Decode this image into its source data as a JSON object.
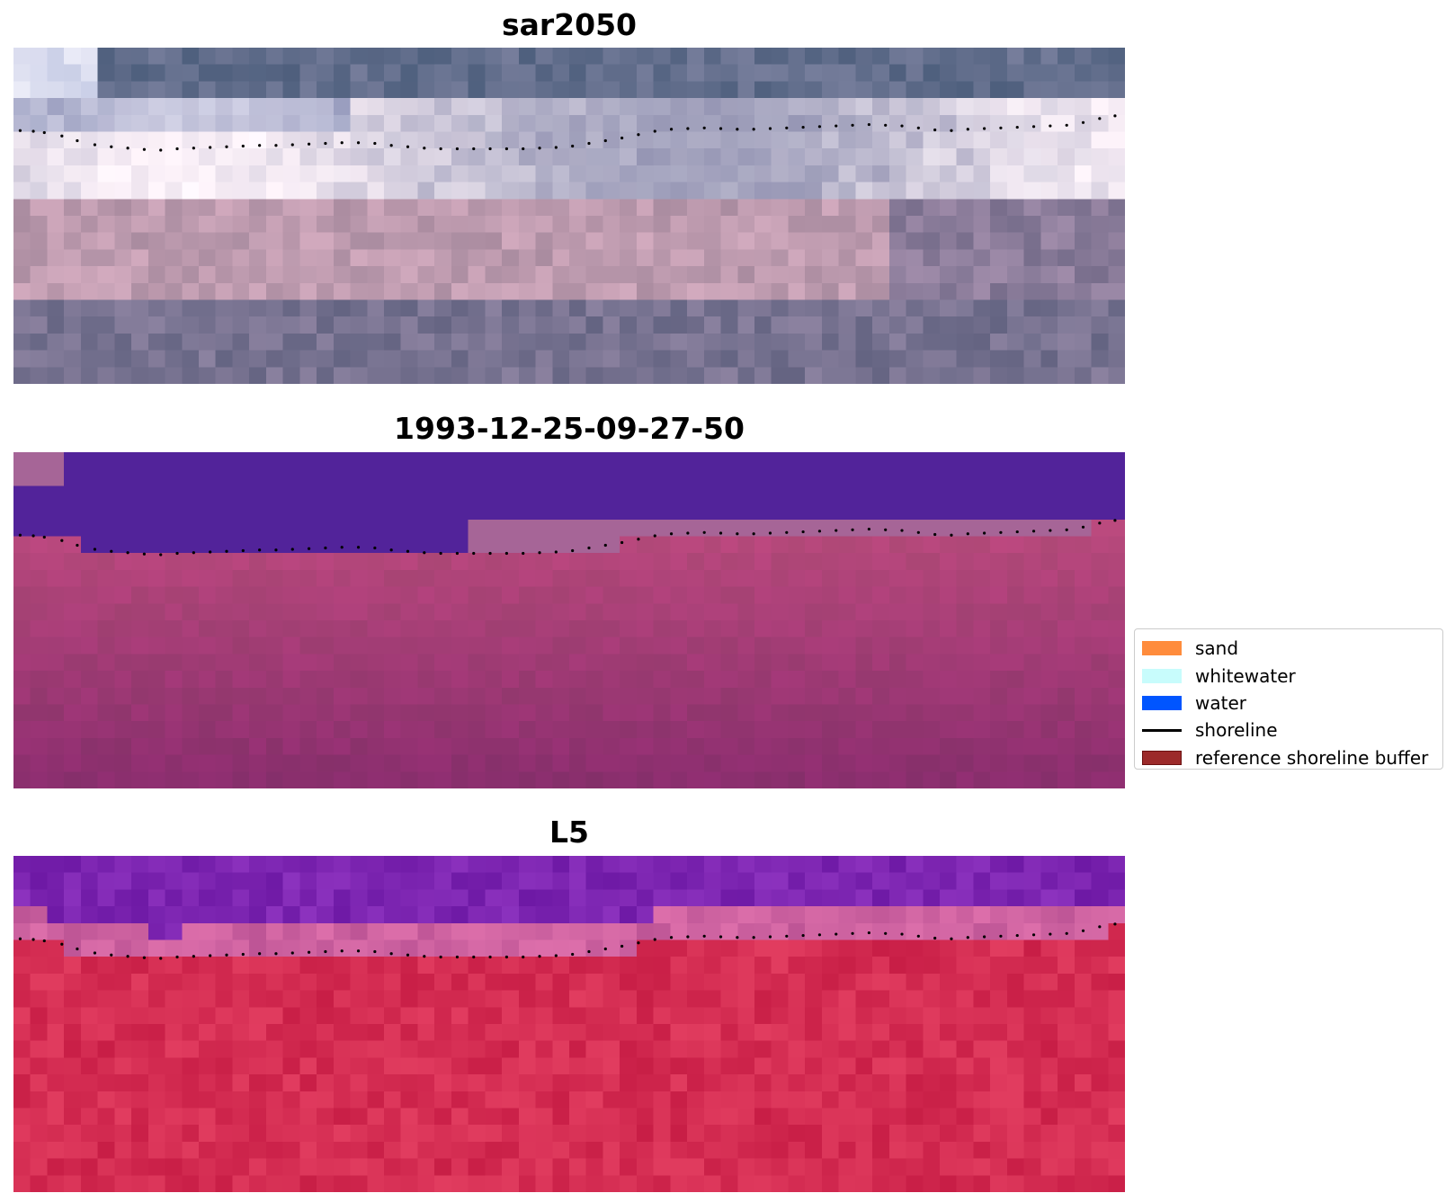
{
  "panels": [
    {
      "title": "sar2050",
      "kind": "rgb"
    },
    {
      "title": "1993-12-25-09-27-50",
      "kind": "classification"
    },
    {
      "title": "L5",
      "kind": "index"
    }
  ],
  "legend": {
    "items": [
      {
        "label": "sand",
        "type": "patch",
        "color": "#ff8c3c"
      },
      {
        "label": "whitewater",
        "type": "patch",
        "color": "#c8fcfc"
      },
      {
        "label": "water",
        "type": "patch",
        "color": "#0055ff"
      },
      {
        "label": "shoreline",
        "type": "line",
        "color": "#000000"
      },
      {
        "label": "reference shoreline buffer",
        "type": "patch",
        "color": "#9c2a2a"
      }
    ]
  },
  "colors": {
    "class_water": "#52239a",
    "class_sand": "#a66597",
    "class_ref": "#9a3c70"
  },
  "shoreline_points": [
    [
      0.0,
      0.21
    ],
    [
      0.012,
      0.212
    ],
    [
      0.022,
      0.216
    ],
    [
      0.038,
      0.226
    ],
    [
      0.052,
      0.24
    ],
    [
      0.068,
      0.252
    ],
    [
      0.083,
      0.258
    ],
    [
      0.098,
      0.262
    ],
    [
      0.113,
      0.266
    ],
    [
      0.128,
      0.268
    ],
    [
      0.143,
      0.264
    ],
    [
      0.158,
      0.262
    ],
    [
      0.173,
      0.26
    ],
    [
      0.188,
      0.258
    ],
    [
      0.203,
      0.256
    ],
    [
      0.218,
      0.254
    ],
    [
      0.233,
      0.254
    ],
    [
      0.248,
      0.252
    ],
    [
      0.263,
      0.25
    ],
    [
      0.278,
      0.248
    ],
    [
      0.293,
      0.246
    ],
    [
      0.308,
      0.246
    ],
    [
      0.323,
      0.248
    ],
    [
      0.338,
      0.254
    ],
    [
      0.353,
      0.258
    ],
    [
      0.368,
      0.262
    ],
    [
      0.383,
      0.264
    ],
    [
      0.398,
      0.264
    ],
    [
      0.413,
      0.264
    ],
    [
      0.428,
      0.264
    ],
    [
      0.443,
      0.264
    ],
    [
      0.458,
      0.264
    ],
    [
      0.473,
      0.262
    ],
    [
      0.488,
      0.26
    ],
    [
      0.503,
      0.256
    ],
    [
      0.518,
      0.248
    ],
    [
      0.533,
      0.24
    ],
    [
      0.548,
      0.232
    ],
    [
      0.563,
      0.222
    ],
    [
      0.578,
      0.212
    ],
    [
      0.593,
      0.206
    ],
    [
      0.608,
      0.204
    ],
    [
      0.623,
      0.202
    ],
    [
      0.638,
      0.204
    ],
    [
      0.653,
      0.206
    ],
    [
      0.668,
      0.206
    ],
    [
      0.683,
      0.204
    ],
    [
      0.698,
      0.202
    ],
    [
      0.713,
      0.2
    ],
    [
      0.728,
      0.198
    ],
    [
      0.743,
      0.196
    ],
    [
      0.758,
      0.194
    ],
    [
      0.773,
      0.192
    ],
    [
      0.788,
      0.194
    ],
    [
      0.803,
      0.196
    ],
    [
      0.818,
      0.202
    ],
    [
      0.833,
      0.208
    ],
    [
      0.848,
      0.21
    ],
    [
      0.863,
      0.206
    ],
    [
      0.878,
      0.204
    ],
    [
      0.893,
      0.202
    ],
    [
      0.908,
      0.2
    ],
    [
      0.923,
      0.198
    ],
    [
      0.938,
      0.196
    ],
    [
      0.953,
      0.194
    ],
    [
      0.968,
      0.186
    ],
    [
      0.983,
      0.174
    ],
    [
      0.997,
      0.166
    ]
  ]
}
